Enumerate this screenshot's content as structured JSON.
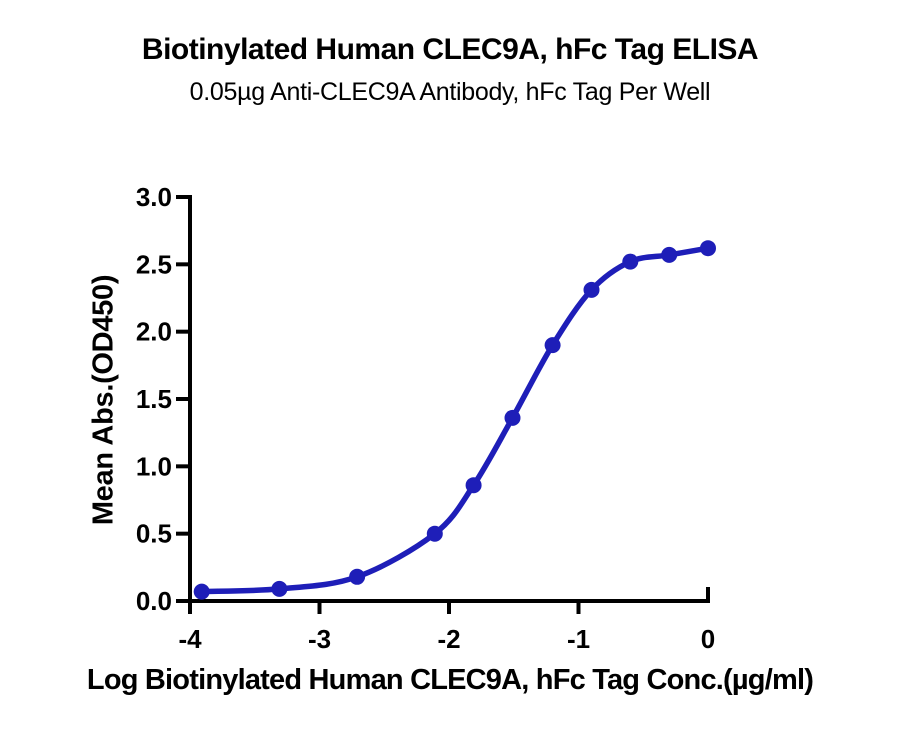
{
  "chart_data": {
    "type": "line",
    "title": "Biotinylated Human CLEC9A, hFc Tag ELISA",
    "subtitle": "0.05µg Anti-CLEC9A Antibody, hFc Tag Per Well",
    "xlabel": "Log Biotinylated Human CLEC9A, hFc Tag Conc.(µg/ml)",
    "ylabel": "Mean Abs.(OD450)",
    "xlim": [
      -4,
      0
    ],
    "ylim": [
      0,
      3
    ],
    "xticks": [
      -4,
      -3,
      -2,
      -1,
      0
    ],
    "xtick_labels": [
      "-4",
      "-3",
      "-2",
      "-1",
      "0"
    ],
    "ytick_labels": [
      "0.0",
      "0.5",
      "1.0",
      "1.5",
      "2.0",
      "2.5",
      "3.0"
    ],
    "grid": false,
    "legend_position": "none",
    "series": [
      {
        "name": "Biotinylated Human CLEC9A, hFc Tag",
        "color": "#1E1EB8",
        "marker": "circle",
        "x": [
          -3.91,
          -3.31,
          -2.71,
          -2.11,
          -1.81,
          -1.51,
          -1.2,
          -0.9,
          -0.6,
          -0.3,
          0.0
        ],
        "y": [
          0.07,
          0.09,
          0.18,
          0.5,
          0.86,
          1.36,
          1.9,
          2.31,
          2.52,
          2.57,
          2.62
        ]
      }
    ],
    "axis_color": "#000000"
  }
}
